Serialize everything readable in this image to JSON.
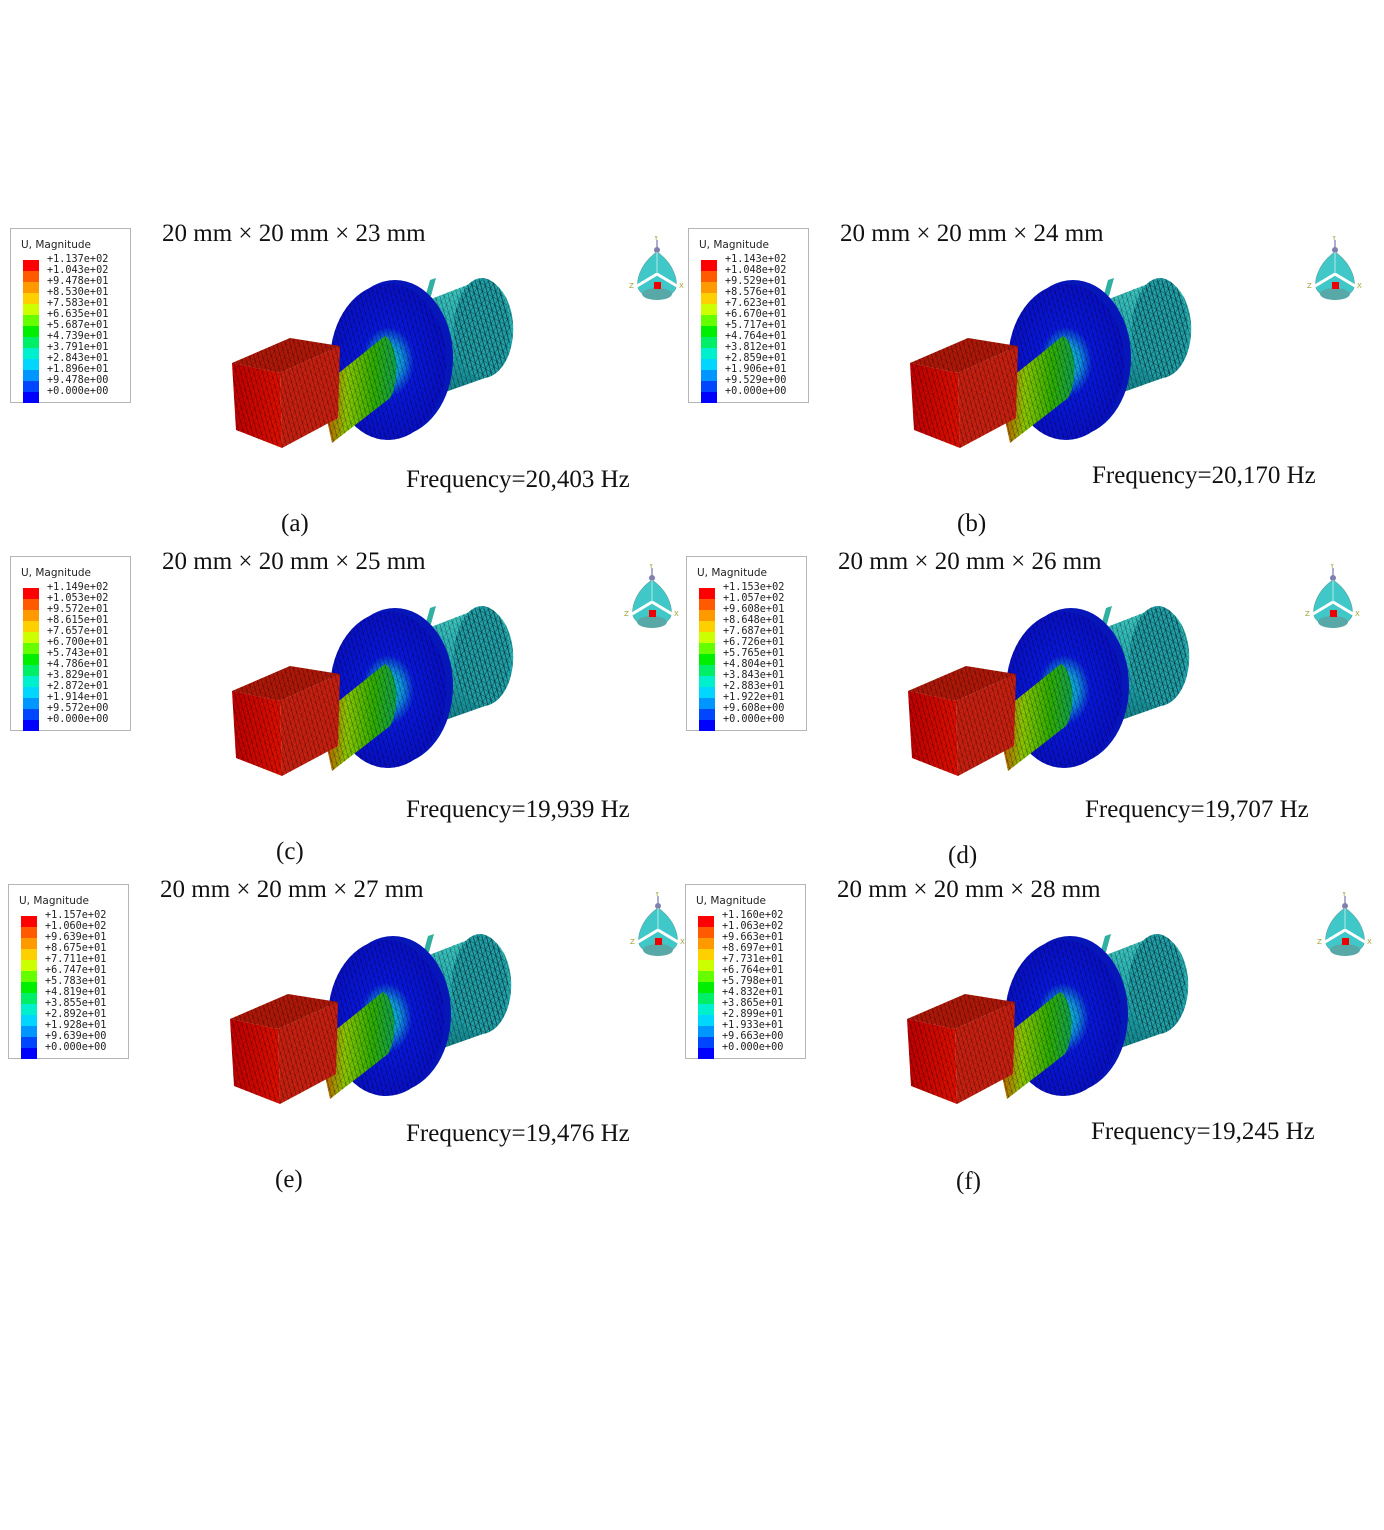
{
  "legend_title": "U, Magnitude",
  "colors": [
    "#ff0000",
    "#ff5a00",
    "#ff9900",
    "#ffd000",
    "#ccff00",
    "#66ff00",
    "#00ef00",
    "#00ef66",
    "#00efcc",
    "#00d6ff",
    "#0096ff",
    "#0046ff",
    "#0000ff"
  ],
  "panels": [
    {
      "label": "(a)",
      "dims": "20 mm × 20 mm × 23 mm",
      "freq": "Frequency=20,403 Hz",
      "values": [
        "+1.137e+02",
        "+1.043e+02",
        "+9.478e+01",
        "+8.530e+01",
        "+7.583e+01",
        "+6.635e+01",
        "+5.687e+01",
        "+4.739e+01",
        "+3.791e+01",
        "+2.843e+01",
        "+1.896e+01",
        "+9.478e+00",
        "+0.000e+00"
      ]
    },
    {
      "label": "(b)",
      "dims": "20 mm × 20 mm × 24 mm",
      "freq": "Frequency=20,170 Hz",
      "values": [
        "+1.143e+02",
        "+1.048e+02",
        "+9.529e+01",
        "+8.576e+01",
        "+7.623e+01",
        "+6.670e+01",
        "+5.717e+01",
        "+4.764e+01",
        "+3.812e+01",
        "+2.859e+01",
        "+1.906e+01",
        "+9.529e+00",
        "+0.000e+00"
      ]
    },
    {
      "label": "(c)",
      "dims": "20 mm × 20 mm × 25 mm",
      "freq": "Frequency=19,939 Hz",
      "values": [
        "+1.149e+02",
        "+1.053e+02",
        "+9.572e+01",
        "+8.615e+01",
        "+7.657e+01",
        "+6.700e+01",
        "+5.743e+01",
        "+4.786e+01",
        "+3.829e+01",
        "+2.872e+01",
        "+1.914e+01",
        "+9.572e+00",
        "+0.000e+00"
      ]
    },
    {
      "label": "(d)",
      "dims": "20 mm × 20 mm × 26 mm",
      "freq": "Frequency=19,707 Hz",
      "values": [
        "+1.153e+02",
        "+1.057e+02",
        "+9.608e+01",
        "+8.648e+01",
        "+7.687e+01",
        "+6.726e+01",
        "+5.765e+01",
        "+4.804e+01",
        "+3.843e+01",
        "+2.883e+01",
        "+1.922e+01",
        "+9.608e+00",
        "+0.000e+00"
      ]
    },
    {
      "label": "(e)",
      "dims": "20 mm × 20 mm × 27 mm",
      "freq": "Frequency=19,476 Hz",
      "values": [
        "+1.157e+02",
        "+1.060e+02",
        "+9.639e+01",
        "+8.675e+01",
        "+7.711e+01",
        "+6.747e+01",
        "+5.783e+01",
        "+4.819e+01",
        "+3.855e+01",
        "+2.892e+01",
        "+1.928e+01",
        "+9.639e+00",
        "+0.000e+00"
      ]
    },
    {
      "label": "(f)",
      "dims": "20 mm × 20 mm × 28 mm",
      "freq": "Frequency=19,245 Hz",
      "values": [
        "+1.160e+02",
        "+1.063e+02",
        "+9.663e+01",
        "+8.697e+01",
        "+7.731e+01",
        "+6.764e+01",
        "+5.798e+01",
        "+4.832e+01",
        "+3.865e+01",
        "+2.899e+01",
        "+1.933e+01",
        "+9.663e+00",
        "+0.000e+00"
      ]
    }
  ],
  "triad": {
    "x": "X",
    "y": "Y",
    "z": "Z"
  }
}
